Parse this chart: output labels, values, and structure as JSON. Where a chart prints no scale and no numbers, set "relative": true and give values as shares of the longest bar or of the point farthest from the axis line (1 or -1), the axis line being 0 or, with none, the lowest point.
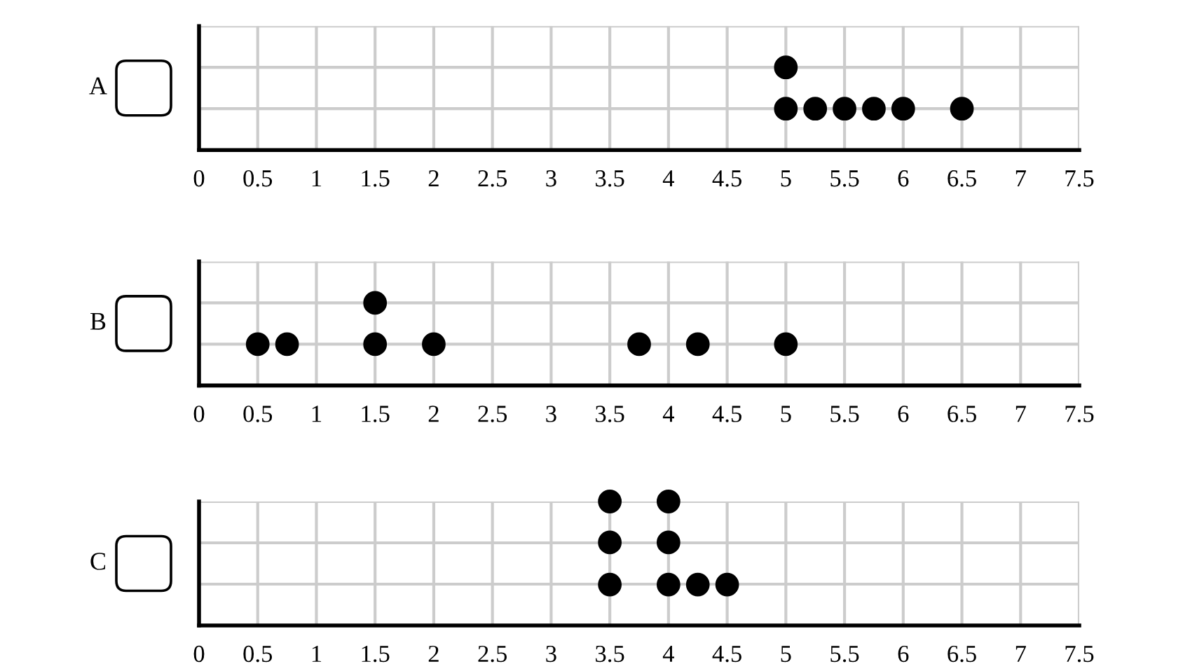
{
  "chart_data": [
    {
      "type": "scatter",
      "ylabel": "A",
      "x": [
        5,
        5.25,
        5.5,
        5.75,
        6,
        6.5,
        5
      ],
      "values": [
        0.5,
        0.5,
        0.5,
        0.5,
        0.5,
        0.5,
        1
      ],
      "relative": true,
      "color": "#000000",
      "marker": "circle",
      "xlim": [
        0,
        7.5
      ],
      "xticks": [
        0,
        0.5,
        1,
        1.5,
        2,
        2.5,
        3,
        3.5,
        4,
        4.5,
        5,
        5.5,
        6,
        6.5,
        7,
        7.5
      ],
      "tick_labels": "x",
      "grid": true
    },
    {
      "type": "scatter",
      "ylabel": "B",
      "x": [
        0.5,
        0.75,
        1.5,
        2,
        3.75,
        4.25,
        5,
        1.5
      ],
      "values": [
        0.5,
        0.5,
        0.5,
        0.5,
        0.5,
        0.5,
        0.5,
        1
      ],
      "relative": true,
      "color": "#000000",
      "marker": "circle",
      "xlim": [
        0,
        7.5
      ],
      "xticks": [
        0,
        0.5,
        1,
        1.5,
        2,
        2.5,
        3,
        3.5,
        4,
        4.5,
        5,
        5.5,
        6,
        6.5,
        7,
        7.5
      ],
      "tick_labels": "x",
      "grid": true
    },
    {
      "type": "scatter",
      "ylabel": "C",
      "x": [
        3.5,
        4,
        4.25,
        4.5,
        3.5,
        4,
        3.5,
        4
      ],
      "values": [
        0.33,
        0.33,
        0.33,
        0.33,
        0.67,
        0.67,
        1,
        1
      ],
      "relative": true,
      "color": "#000000",
      "marker": "circle",
      "xlim": [
        0,
        7.5
      ],
      "xticks": [
        0,
        0.5,
        1,
        1.5,
        2,
        2.5,
        3,
        3.5,
        4,
        4.5,
        5,
        5.5,
        6,
        6.5,
        7,
        7.5
      ],
      "tick_labels": "x",
      "grid": true
    }
  ]
}
